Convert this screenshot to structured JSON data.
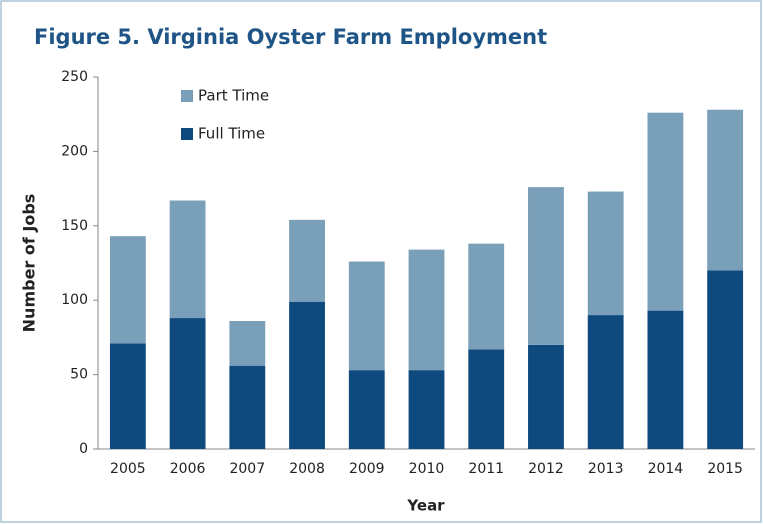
{
  "chart_data": {
    "type": "stacked_bar",
    "title": "Figure 5. Virginia Oyster Farm Employment",
    "x_label": "Year",
    "y_label": "Number of Jobs",
    "categories": [
      "2005",
      "2006",
      "2007",
      "2008",
      "2009",
      "2010",
      "2011",
      "2012",
      "2013",
      "2014",
      "2015"
    ],
    "series": [
      {
        "name": "Full Time",
        "color": "#0f4a7e",
        "values": [
          71,
          88,
          56,
          99,
          53,
          53,
          67,
          70,
          90,
          93,
          120
        ]
      },
      {
        "name": "Part Time",
        "color": "#7a9fb8",
        "values": [
          72,
          79,
          30,
          55,
          73,
          81,
          71,
          106,
          83,
          133,
          108
        ]
      }
    ],
    "ylim": [
      0,
      250
    ],
    "yticks": [
      0,
      50,
      100,
      150,
      200,
      250
    ],
    "grid": false
  }
}
